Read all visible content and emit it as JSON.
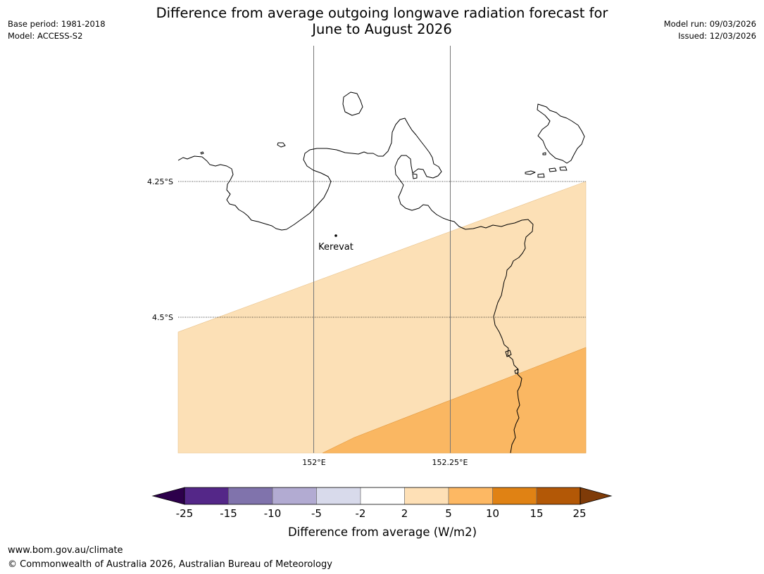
{
  "header": {
    "title_line1": "Difference from average outgoing longwave radiation forecast for",
    "title_line2": "June to August 2026",
    "base_period": "Base period: 1981-2018",
    "model": "Model: ACCESS-S2",
    "model_run": "Model run: 09/03/2026",
    "issued": "Issued: 12/03/2026"
  },
  "map": {
    "lat_labels": [
      "4.25°S",
      "4.5°S"
    ],
    "lon_labels": [
      "152°E",
      "152.25°E"
    ],
    "place": {
      "name": "Kerevat"
    },
    "colors": {
      "band_2_5": "#fce0b6",
      "band_5_10": "#fab762",
      "coast": "#000000"
    }
  },
  "legend": {
    "title": "Difference from average (W/m2)",
    "ticks": [
      "-25",
      "-15",
      "-10",
      "-5",
      "-2",
      "2",
      "5",
      "10",
      "15",
      "25"
    ],
    "colors": [
      "#2d004b",
      "#542788",
      "#8073ac",
      "#b2abd2",
      "#d8daeb",
      "#ffffff",
      "#fee0b6",
      "#fdb863",
      "#e08214",
      "#b35806",
      "#7f3b08"
    ]
  },
  "footer": {
    "url": "www.bom.gov.au/climate",
    "copyright": "© Commonwealth of Australia 2026, Australian Bureau of Meteorology"
  }
}
